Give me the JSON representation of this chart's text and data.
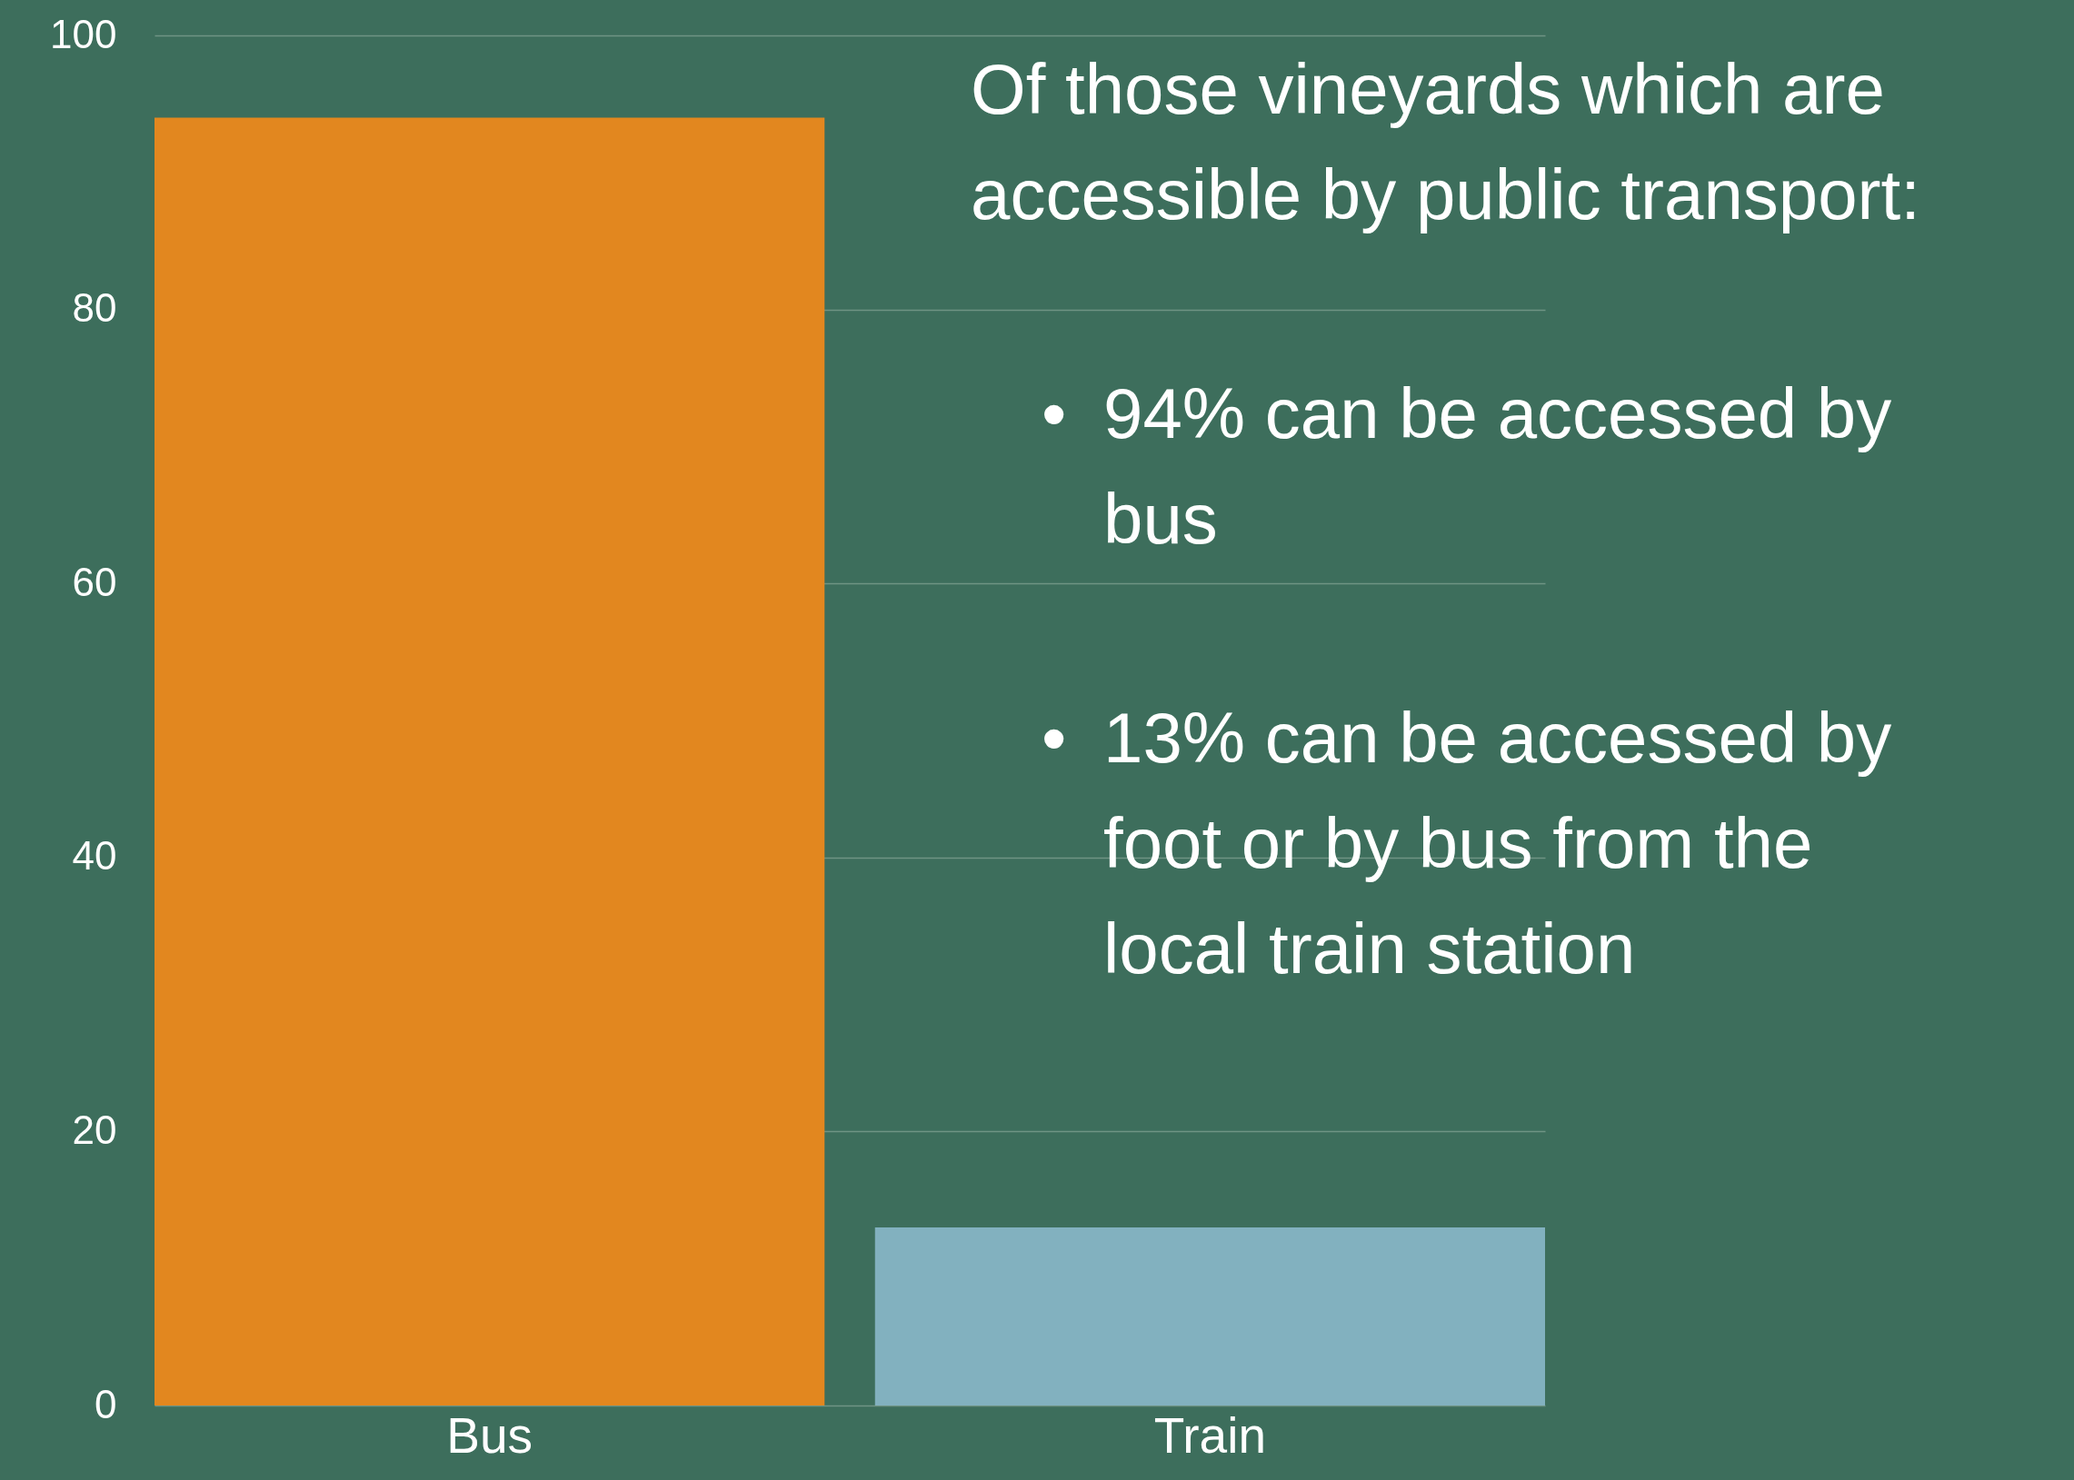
{
  "chart_data": {
    "type": "bar",
    "categories": [
      "Bus",
      "Train"
    ],
    "colors": [
      "#e2871f",
      "#82b1bf"
    ],
    "values": [
      94,
      13
    ],
    "ylim": [
      0,
      100
    ],
    "yticks": [
      0,
      20,
      40,
      60,
      80,
      100
    ],
    "grid": "y",
    "annotations": [
      "Of those vineyards which are accessible by public transport:",
      "• 94% can be accessed by bus",
      "• 13% can be accessed by foot or by bus from the local train station"
    ]
  }
}
